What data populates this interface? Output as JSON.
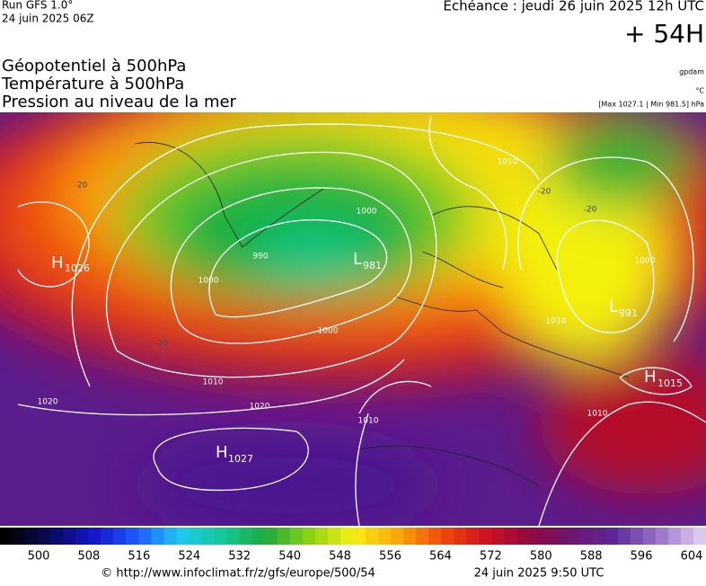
{
  "header": {
    "run": "Run GFS 1.0°",
    "run_time": "24 juin 2025 06Z",
    "valid": "Echéance : jeudi 26 juin 2025 12h UTC",
    "lead": "+ 54H",
    "titles": [
      "Géopotentiel à 500hPa",
      "Température à 500hPa",
      "Pression au niveau de la mer"
    ],
    "units": [
      "gpdam",
      "°C",
      "[Max 1027.1 | Min 981.5] hPa"
    ]
  },
  "map": {
    "pressure_centers": [
      {
        "label": "H",
        "value": "1026"
      },
      {
        "label": "L",
        "value": "981"
      },
      {
        "label": "H",
        "value": "1027"
      },
      {
        "label": "L",
        "value": "991"
      },
      {
        "label": "H",
        "value": "1015"
      }
    ],
    "isobar_labels": [
      "1000",
      "990",
      "1000",
      "1010",
      "1020",
      "1020",
      "1010",
      "1000",
      "1010",
      "1010",
      "1010",
      "1000"
    ],
    "temperature_labels": [
      "-20",
      "-20",
      "-20",
      "-20"
    ]
  },
  "legend": {
    "ticks": [
      500,
      508,
      516,
      524,
      532,
      540,
      548,
      556,
      564,
      572,
      580,
      588,
      596,
      604
    ]
  },
  "footer": {
    "url": "© http://www.infoclimat.fr/z/gfs/europe/500/54",
    "date": "24 juin 2025  9:50 UTC"
  }
}
